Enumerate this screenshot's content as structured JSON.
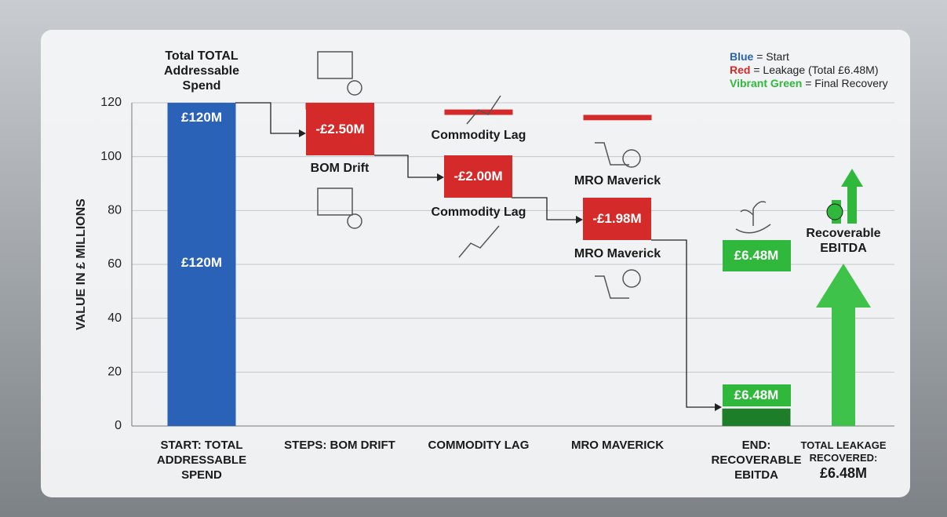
{
  "chart_data": {
    "type": "waterfall",
    "ylabel": "VALUE IN £ MILLIONS",
    "categories": [
      "START: TOTAL ADDRESSABLE SPEND",
      "STEPS: BOM DRIFT",
      "COMMODITY LAG",
      "MRO MAVERICK",
      "END: RECOVERABLE EBITDA"
    ],
    "values": [
      120,
      -2.5,
      -2.0,
      -1.98,
      6.48
    ],
    "value_labels": [
      "£120M",
      "-£2.50M",
      "-£2.00M",
      "-£1.98M",
      "£6.48M"
    ],
    "colors": [
      "#2a62b8",
      "#d42a2a",
      "#d42a2a",
      "#d42a2a",
      "#2fb83c"
    ],
    "ylim": [
      0,
      120
    ],
    "yticks": [
      0,
      20,
      40,
      60,
      80,
      100,
      120
    ],
    "grid": true,
    "annotations": [
      "Total TOTAL Addressable Spend",
      "BOM Drift",
      "Commodity Lag",
      "MRO Maverick",
      "Commodity Lag",
      "MRO Maverick",
      "Recoverable EBITDA"
    ],
    "summary": {
      "label": "TOTAL LEAKAGE RECOVERED:",
      "value_label": "£6.48M"
    },
    "legend": [
      {
        "key": "Blue",
        "text": "= Start",
        "color": "#2a62b8"
      },
      {
        "key": "Red",
        "text": "= Leakage (Total £6.48M)",
        "color": "#d42a2a"
      },
      {
        "key": "Vibrant Green",
        "text": "= Final Recovery",
        "color": "#2fb83c"
      }
    ]
  }
}
